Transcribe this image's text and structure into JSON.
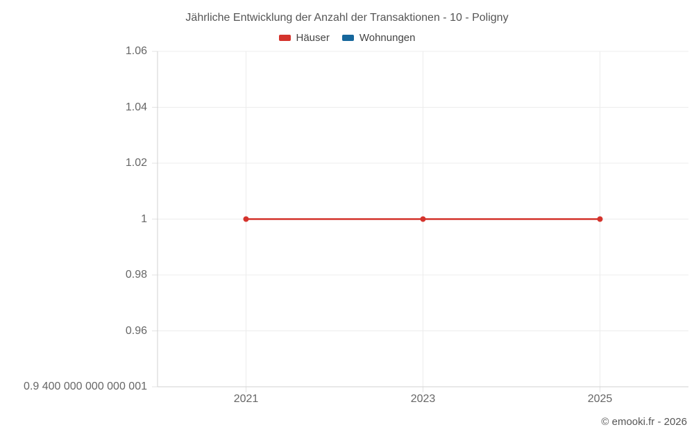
{
  "chart_data": {
    "type": "line",
    "title": "Jährliche Entwicklung der Anzahl der Transaktionen - 10 - Poligny",
    "footer": "© emooki.fr - 2026",
    "legend_position": "top",
    "grid": true,
    "xlabel": "",
    "ylabel": "",
    "xlim": [
      2020,
      2026
    ],
    "ylim": [
      0.9400000000000001,
      1.06
    ],
    "x_ticks": [
      {
        "value": 2021,
        "label": "2021"
      },
      {
        "value": 2023,
        "label": "2023"
      },
      {
        "value": 2025,
        "label": "2025"
      }
    ],
    "y_ticks": [
      {
        "value": 1.06,
        "label": "1.06"
      },
      {
        "value": 1.04,
        "label": "1.04"
      },
      {
        "value": 1.02,
        "label": "1.02"
      },
      {
        "value": 1,
        "label": "1"
      },
      {
        "value": 0.98,
        "label": "0.98"
      },
      {
        "value": 0.96,
        "label": "0.96"
      },
      {
        "value": 0.9400000000000001,
        "label": "0.9 400 000 000 000 001"
      }
    ],
    "series": [
      {
        "name": "Häuser",
        "color": "#d4332c",
        "x": [
          2021,
          2023,
          2025
        ],
        "y": [
          1,
          1,
          1
        ]
      },
      {
        "name": "Wohnungen",
        "color": "#16679c",
        "x": [],
        "y": []
      }
    ]
  },
  "colors": {
    "background": "#ffffff",
    "gridline": "#ececec",
    "axis": "#d2d2d2",
    "tick_mark": "#e3e3e3",
    "tick_text": "#666666",
    "title_text": "#555555",
    "legend_text": "#444444",
    "footer_text": "#555555"
  }
}
